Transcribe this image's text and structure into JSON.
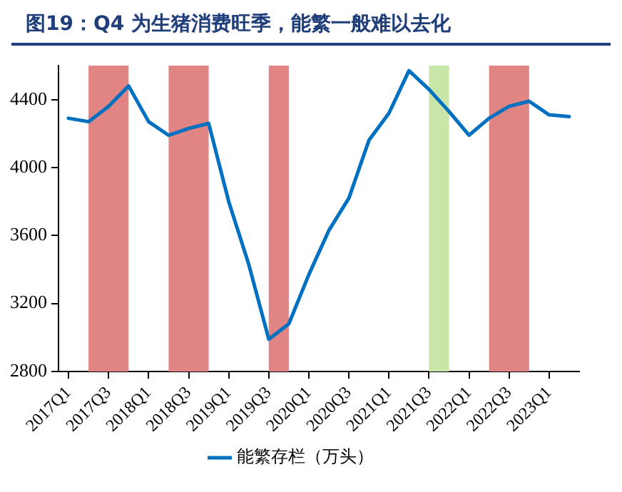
{
  "chart_data": {
    "type": "line",
    "title": "图19：Q4 为生猪消费旺季，能繁一般难以去化",
    "x": [
      "2017-03",
      "2017-06",
      "2017-09",
      "2017-12",
      "2018-03",
      "2018-06",
      "2018-09",
      "2018-12",
      "2019-03",
      "2019-06",
      "2019-09",
      "2019-12",
      "2020-03",
      "2020-06",
      "2020-09",
      "2020-12",
      "2021-03",
      "2021-06",
      "2021-09",
      "2021-12",
      "2022-03",
      "2022-06",
      "2022-09",
      "2022-12",
      "2023-03",
      "2023-06"
    ],
    "series": [
      {
        "name": "能繁存栏（万头）",
        "color": "#0070c0",
        "values": [
          4290,
          4270,
          4360,
          4480,
          4270,
          4190,
          4230,
          4260,
          3800,
          3430,
          2990,
          3080,
          3370,
          3630,
          3820,
          4160,
          4320,
          4570,
          4460,
          4330,
          4190,
          4290,
          4360,
          4390,
          4310,
          4300
        ]
      }
    ],
    "xlim": [
      "2017-01-16",
      "2023-07-16"
    ],
    "xticks": [
      {
        "value": "2017-03",
        "label": "2017Q1"
      },
      {
        "value": "2017-09",
        "label": "2017Q3"
      },
      {
        "value": "2018-03",
        "label": "2018Q1"
      },
      {
        "value": "2018-09",
        "label": "2018Q3"
      },
      {
        "value": "2019-03",
        "label": "2019Q1"
      },
      {
        "value": "2019-09",
        "label": "2019Q3"
      },
      {
        "value": "2020-03",
        "label": "2020Q1"
      },
      {
        "value": "2020-09",
        "label": "2020Q3"
      },
      {
        "value": "2021-03",
        "label": "2021Q1"
      },
      {
        "value": "2021-09",
        "label": "2021Q3"
      },
      {
        "value": "2022-03",
        "label": "2022Q1"
      },
      {
        "value": "2022-09",
        "label": "2022Q3"
      },
      {
        "value": "2023-03",
        "label": "2023Q1"
      }
    ],
    "ylim": [
      2800,
      4600
    ],
    "yticks": [
      2800,
      3200,
      3600,
      4000,
      4400
    ],
    "bands": [
      {
        "axis": "x",
        "from": "2017-06",
        "to": "2017-12",
        "color": "#e08484"
      },
      {
        "axis": "x",
        "from": "2018-06",
        "to": "2018-12",
        "color": "#e08484"
      },
      {
        "axis": "x",
        "from": "2019-09",
        "to": "2019-12",
        "color": "#e08484"
      },
      {
        "axis": "x",
        "from": "2021-09",
        "to": "2021-12",
        "color": "#c8e6a8"
      },
      {
        "axis": "x",
        "from": "2022-06",
        "to": "2022-12",
        "color": "#e08484"
      }
    ],
    "grid": false,
    "legend": "bottom",
    "marker": "none",
    "line_style": "solid"
  }
}
